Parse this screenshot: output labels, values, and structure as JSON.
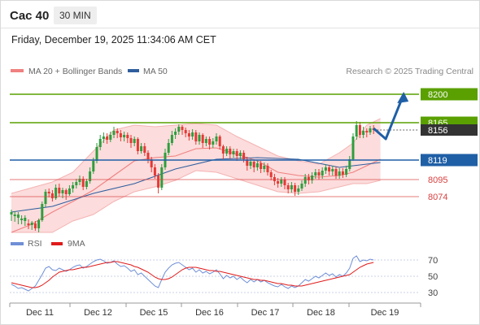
{
  "header": {
    "symbol": "Cac 40",
    "timeframe": "30 MIN"
  },
  "timestamp": "Friday, December 19, 2025 11:34:06 AM CET",
  "legend": {
    "ma20": "MA 20 + Bollinger Bands",
    "ma50": "MA 50",
    "rsi": "RSI",
    "ma9": "9MA"
  },
  "credit": "Research © 2025 Trading Central",
  "colors": {
    "up": "#2e9e3e",
    "down": "#e53935",
    "band": "#fbd6d6",
    "ma20": "#f08080",
    "ma50": "#2f5e9e",
    "resistance": "#5aa000",
    "pivot": "#1f5fa6",
    "support": "#d94040",
    "rsi": "#6f8fd6",
    "rsi_ma": "#e01a1a",
    "last": "#333333"
  },
  "chart_data": [
    {
      "type": "candlestick",
      "ylim": [
        8030,
        8215
      ],
      "x_labels": [
        "Dec 11",
        "Dec 12",
        "Dec 15",
        "Dec 16",
        "Dec 17",
        "Dec 18",
        "Dec 19"
      ],
      "levels": [
        {
          "value": 8200,
          "label": "8200",
          "kind": "resistance"
        },
        {
          "value": 8165,
          "label": "8165",
          "kind": "resistance"
        },
        {
          "value": 8119,
          "label": "8119",
          "kind": "pivot"
        },
        {
          "value": 8095,
          "label": "8095",
          "kind": "support"
        },
        {
          "value": 8074,
          "label": "8074",
          "kind": "support"
        }
      ],
      "last_price": {
        "value": 8156,
        "label": "8156"
      },
      "candles": [
        [
          8052,
          8055,
          8044,
          8058
        ],
        [
          8050,
          8052,
          8043,
          8056
        ],
        [
          8048,
          8052,
          8040,
          8055
        ],
        [
          8045,
          8047,
          8040,
          8051
        ],
        [
          8044,
          8048,
          8038,
          8051
        ],
        [
          8041,
          8039,
          8034,
          8046
        ],
        [
          8039,
          8042,
          8033,
          8044
        ],
        [
          8041,
          8035,
          8032,
          8044
        ],
        [
          8035,
          8045,
          8030,
          8047
        ],
        [
          8045,
          8065,
          8043,
          8068
        ],
        [
          8065,
          8080,
          8061,
          8083
        ],
        [
          8080,
          8078,
          8073,
          8084
        ],
        [
          8078,
          8072,
          8068,
          8082
        ],
        [
          8072,
          8085,
          8070,
          8089
        ],
        [
          8085,
          8078,
          8074,
          8090
        ],
        [
          8078,
          8082,
          8072,
          8085
        ],
        [
          8082,
          8077,
          8070,
          8084
        ],
        [
          8077,
          8084,
          8075,
          8088
        ],
        [
          8084,
          8088,
          8079,
          8092
        ],
        [
          8088,
          8092,
          8084,
          8096
        ],
        [
          8092,
          8096,
          8088,
          8100
        ],
        [
          8096,
          8086,
          8082,
          8099
        ],
        [
          8086,
          8093,
          8083,
          8096
        ],
        [
          8093,
          8105,
          8090,
          8110
        ],
        [
          8105,
          8118,
          8102,
          8122
        ],
        [
          8118,
          8135,
          8115,
          8140
        ],
        [
          8135,
          8145,
          8131,
          8150
        ],
        [
          8145,
          8148,
          8140,
          8153
        ],
        [
          8148,
          8144,
          8139,
          8152
        ],
        [
          8144,
          8150,
          8141,
          8154
        ],
        [
          8150,
          8155,
          8146,
          8160
        ],
        [
          8155,
          8152,
          8146,
          8158
        ],
        [
          8152,
          8147,
          8142,
          8156
        ],
        [
          8147,
          8150,
          8142,
          8154
        ],
        [
          8150,
          8146,
          8140,
          8153
        ],
        [
          8146,
          8140,
          8134,
          8150
        ],
        [
          8140,
          8145,
          8136,
          8148
        ],
        [
          8145,
          8130,
          8126,
          8147
        ],
        [
          8130,
          8136,
          8127,
          8140
        ],
        [
          8136,
          8128,
          8124,
          8140
        ],
        [
          8128,
          8120,
          8115,
          8131
        ],
        [
          8120,
          8110,
          8104,
          8123
        ],
        [
          8110,
          8100,
          8096,
          8114
        ],
        [
          8100,
          8085,
          8078,
          8103
        ],
        [
          8085,
          8110,
          8082,
          8114
        ],
        [
          8110,
          8128,
          8107,
          8133
        ],
        [
          8128,
          8140,
          8125,
          8145
        ],
        [
          8140,
          8150,
          8137,
          8155
        ],
        [
          8150,
          8154,
          8145,
          8158
        ],
        [
          8154,
          8160,
          8150,
          8163
        ],
        [
          8160,
          8156,
          8150,
          8162
        ],
        [
          8156,
          8152,
          8147,
          8159
        ],
        [
          8152,
          8148,
          8143,
          8156
        ],
        [
          8148,
          8153,
          8144,
          8157
        ],
        [
          8153,
          8142,
          8138,
          8156
        ],
        [
          8142,
          8150,
          8138,
          8153
        ],
        [
          8150,
          8140,
          8134,
          8152
        ],
        [
          8140,
          8145,
          8136,
          8148
        ],
        [
          8145,
          8138,
          8132,
          8148
        ],
        [
          8138,
          8142,
          8134,
          8146
        ],
        [
          8142,
          8148,
          8138,
          8152
        ],
        [
          8148,
          8136,
          8132,
          8150
        ],
        [
          8136,
          8127,
          8120,
          8138
        ],
        [
          8127,
          8133,
          8124,
          8136
        ],
        [
          8133,
          8126,
          8120,
          8136
        ],
        [
          8126,
          8130,
          8122,
          8133
        ],
        [
          8130,
          8124,
          8118,
          8133
        ],
        [
          8124,
          8128,
          8120,
          8131
        ],
        [
          8128,
          8120,
          8116,
          8131
        ],
        [
          8120,
          8112,
          8106,
          8123
        ],
        [
          8112,
          8117,
          8108,
          8120
        ],
        [
          8117,
          8110,
          8104,
          8120
        ],
        [
          8110,
          8115,
          8106,
          8118
        ],
        [
          8115,
          8108,
          8103,
          8118
        ],
        [
          8108,
          8112,
          8104,
          8116
        ],
        [
          8112,
          8104,
          8100,
          8115
        ],
        [
          8104,
          8098,
          8094,
          8107
        ],
        [
          8098,
          8093,
          8088,
          8102
        ],
        [
          8093,
          8090,
          8085,
          8097
        ],
        [
          8090,
          8095,
          8086,
          8098
        ],
        [
          8095,
          8088,
          8083,
          8098
        ],
        [
          8088,
          8083,
          8078,
          8091
        ],
        [
          8083,
          8088,
          8079,
          8092
        ],
        [
          8088,
          8080,
          8075,
          8091
        ],
        [
          8080,
          8084,
          8076,
          8088
        ],
        [
          8084,
          8090,
          8081,
          8094
        ],
        [
          8090,
          8098,
          8086,
          8102
        ],
        [
          8098,
          8094,
          8089,
          8102
        ],
        [
          8094,
          8100,
          8090,
          8104
        ],
        [
          8100,
          8104,
          8096,
          8108
        ],
        [
          8104,
          8100,
          8095,
          8108
        ],
        [
          8100,
          8106,
          8096,
          8110
        ],
        [
          8106,
          8110,
          8102,
          8114
        ],
        [
          8110,
          8105,
          8100,
          8113
        ],
        [
          8105,
          8108,
          8100,
          8112
        ],
        [
          8108,
          8100,
          8096,
          8111
        ],
        [
          8100,
          8105,
          8096,
          8109
        ],
        [
          8105,
          8101,
          8097,
          8109
        ],
        [
          8101,
          8108,
          8098,
          8112
        ],
        [
          8108,
          8120,
          8105,
          8124
        ],
        [
          8120,
          8148,
          8118,
          8152
        ],
        [
          8148,
          8162,
          8144,
          8167
        ],
        [
          8162,
          8150,
          8146,
          8166
        ],
        [
          8150,
          8155,
          8146,
          8160
        ],
        [
          8155,
          8153,
          8147,
          8158
        ],
        [
          8153,
          8158,
          8150,
          8161
        ],
        [
          8158,
          8156,
          8151,
          8162
        ]
      ],
      "ma20": [
        [
          0,
          8030
        ],
        [
          6,
          8040
        ],
        [
          12,
          8055
        ],
        [
          18,
          8068
        ],
        [
          24,
          8082
        ],
        [
          30,
          8100
        ],
        [
          36,
          8118
        ],
        [
          42,
          8122
        ],
        [
          48,
          8124
        ],
        [
          54,
          8133
        ],
        [
          60,
          8134
        ],
        [
          66,
          8126
        ],
        [
          72,
          8118
        ],
        [
          78,
          8104
        ],
        [
          84,
          8100
        ],
        [
          90,
          8098
        ],
        [
          96,
          8100
        ],
        [
          100,
          8104
        ],
        [
          104,
          8112
        ],
        [
          108,
          8120
        ]
      ],
      "bollinger_upper": [
        [
          0,
          8078
        ],
        [
          6,
          8085
        ],
        [
          12,
          8092
        ],
        [
          18,
          8104
        ],
        [
          24,
          8130
        ],
        [
          30,
          8156
        ],
        [
          36,
          8162
        ],
        [
          42,
          8160
        ],
        [
          48,
          8162
        ],
        [
          54,
          8164
        ],
        [
          60,
          8162
        ],
        [
          66,
          8148
        ],
        [
          72,
          8136
        ],
        [
          78,
          8124
        ],
        [
          84,
          8118
        ],
        [
          90,
          8114
        ],
        [
          96,
          8128
        ],
        [
          100,
          8140
        ],
        [
          104,
          8162
        ],
        [
          108,
          8170
        ]
      ],
      "bollinger_lower": [
        [
          0,
          8030
        ],
        [
          6,
          8030
        ],
        [
          12,
          8030
        ],
        [
          18,
          8044
        ],
        [
          24,
          8052
        ],
        [
          30,
          8068
        ],
        [
          36,
          8080
        ],
        [
          42,
          8086
        ],
        [
          48,
          8094
        ],
        [
          54,
          8106
        ],
        [
          60,
          8104
        ],
        [
          66,
          8096
        ],
        [
          72,
          8088
        ],
        [
          78,
          8080
        ],
        [
          84,
          8078
        ],
        [
          90,
          8080
        ],
        [
          96,
          8086
        ],
        [
          100,
          8090
        ],
        [
          104,
          8090
        ],
        [
          108,
          8094
        ]
      ],
      "ma50": [
        [
          0,
          8055
        ],
        [
          12,
          8062
        ],
        [
          24,
          8078
        ],
        [
          36,
          8090
        ],
        [
          48,
          8108
        ],
        [
          60,
          8120
        ],
        [
          72,
          8122
        ],
        [
          84,
          8120
        ],
        [
          96,
          8110
        ],
        [
          108,
          8116
        ]
      ],
      "projection": [
        [
          8156,
          8158
        ],
        [
          8148,
          8145
        ],
        [
          8200,
          8195
        ]
      ]
    },
    {
      "type": "line",
      "title": "RSI",
      "ylim": [
        20,
        80
      ],
      "y_ticks": [
        70,
        50,
        30
      ],
      "series": [
        {
          "name": "RSI",
          "values": [
            40,
            38,
            35,
            36,
            34,
            32,
            35,
            38,
            45,
            52,
            60,
            62,
            58,
            57,
            60,
            58,
            56,
            58,
            61,
            63,
            64,
            60,
            62,
            65,
            68,
            70,
            71,
            69,
            66,
            67,
            69,
            65,
            62,
            63,
            60,
            56,
            58,
            52,
            54,
            50,
            46,
            42,
            38,
            36,
            46,
            55,
            60,
            64,
            66,
            67,
            64,
            61,
            58,
            60,
            55,
            58,
            54,
            56,
            53,
            55,
            58,
            53,
            47,
            51,
            48,
            50,
            46,
            49,
            45,
            42,
            46,
            43,
            46,
            43,
            45,
            42,
            40,
            38,
            37,
            40,
            37,
            35,
            38,
            36,
            38,
            42,
            46,
            44,
            47,
            50,
            48,
            51,
            54,
            51,
            53,
            49,
            52,
            50,
            54,
            60,
            72,
            75,
            68,
            70,
            69,
            71,
            70
          ]
        },
        {
          "name": "9MA",
          "values": [
            42,
            41,
            40,
            39,
            38,
            37,
            36,
            36,
            37,
            39,
            42,
            45,
            49,
            52,
            55,
            56,
            57,
            58,
            58,
            59,
            60,
            61,
            61,
            62,
            63,
            64,
            65,
            66,
            67,
            67,
            68,
            68,
            67,
            66,
            65,
            64,
            62,
            61,
            59,
            57,
            55,
            52,
            49,
            47,
            46,
            46,
            47,
            49,
            52,
            55,
            58,
            60,
            61,
            61,
            61,
            60,
            59,
            58,
            57,
            57,
            56,
            56,
            55,
            54,
            53,
            52,
            51,
            50,
            49,
            48,
            47,
            46,
            46,
            45,
            45,
            44,
            43,
            42,
            41,
            41,
            40,
            39,
            39,
            38,
            38,
            38,
            39,
            40,
            41,
            42,
            43,
            44,
            45,
            46,
            47,
            48,
            49,
            50,
            51,
            52,
            55,
            58,
            61,
            63,
            65,
            66,
            67
          ]
        }
      ]
    }
  ]
}
